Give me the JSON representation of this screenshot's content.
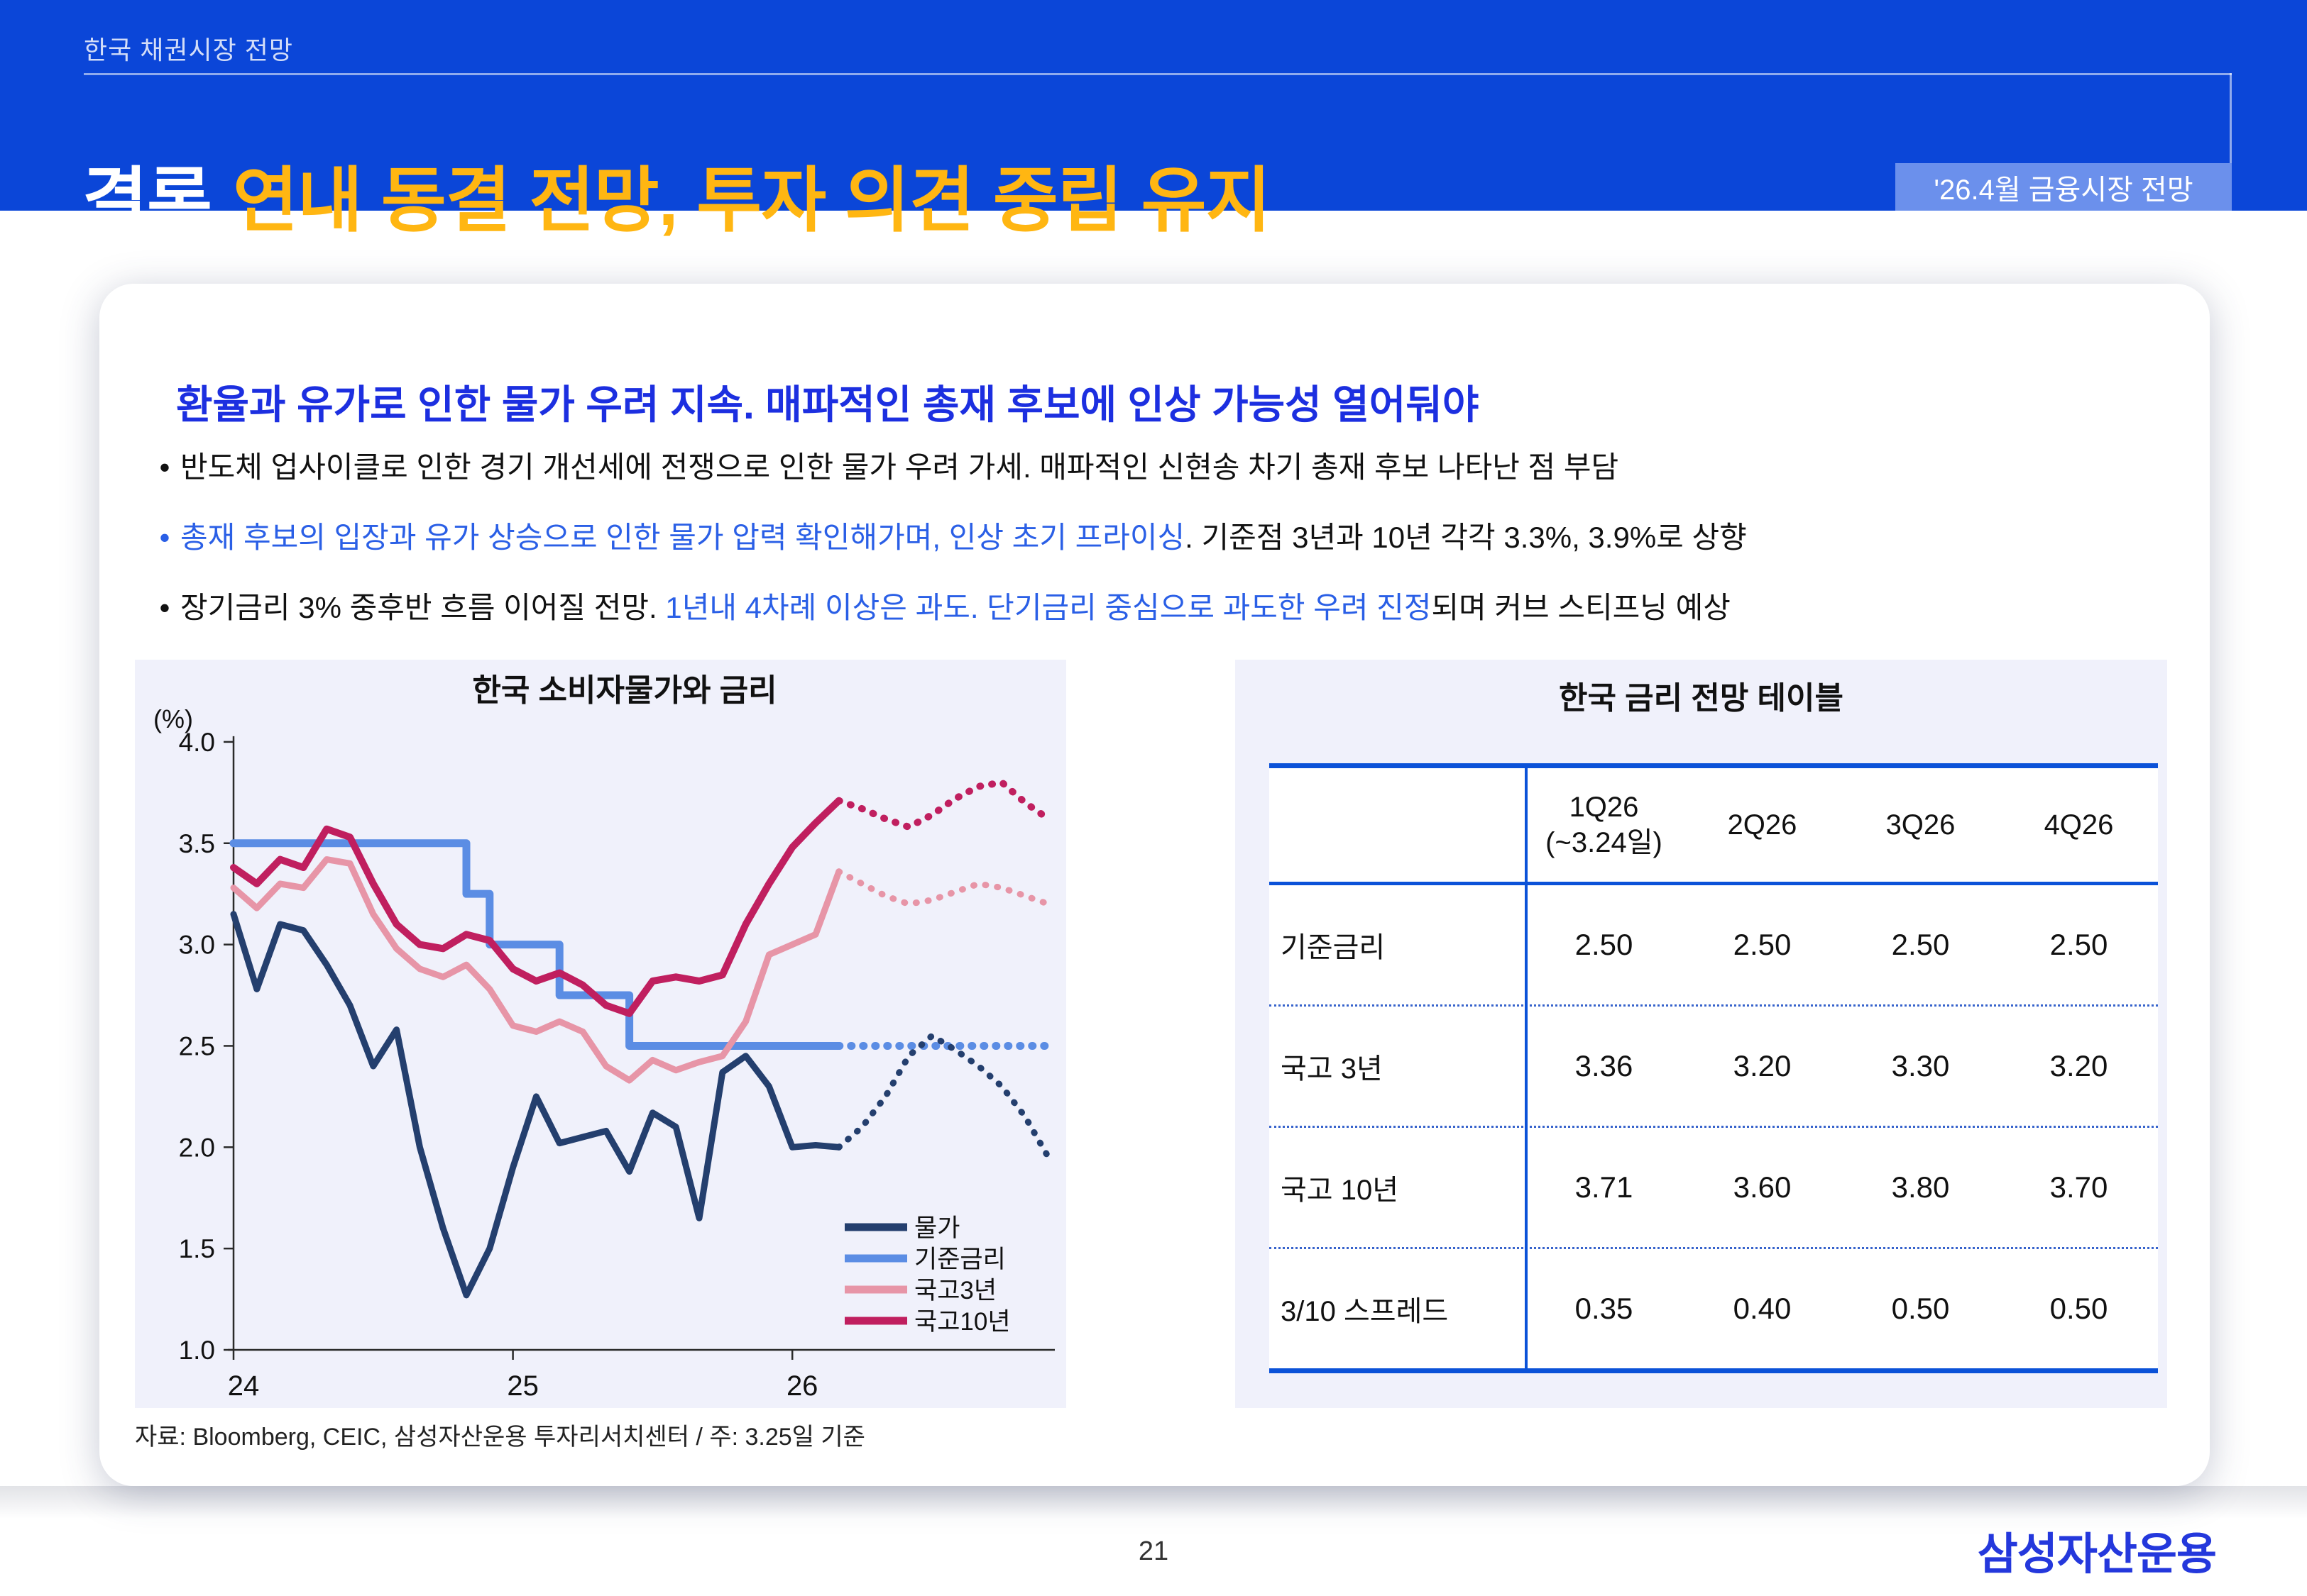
{
  "slide": {
    "kicker": "한국 채권시장 전망",
    "title_emph": "결론",
    "title_rest": "연내 동결 전망, 투자 의견 중립 유지",
    "badge": "'26.4월 금융시장 전망",
    "page_number": "21",
    "logo": "삼성자산운용"
  },
  "colors": {
    "header_blue": "#0b46d8",
    "badge_blue": "#6b90ec",
    "title_yellow": "#ffb612",
    "heading_blue": "#1c2fe0",
    "bullet_blue": "#2a5fe6",
    "table_border_blue": "#0b52d8",
    "panel_lavender": "#f0f1fb"
  },
  "content": {
    "heading": "환율과 유가로 인한 물가 우려 지속. 매파적인 총재 후보에 인상 가능성 열어둬야",
    "bullets": [
      {
        "bullet_color": "#111111",
        "segments": [
          {
            "text": "반도체 업사이클로 인한 경기 개선세에 전쟁으로 인한 물가 우려 가세. 매파적인 신현송 차기 총재 후보 나타난 점 부담",
            "color": "#111111"
          }
        ]
      },
      {
        "bullet_color": "#2a5fe6",
        "segments": [
          {
            "text": "총재 후보의 입장과 유가 상승으로 인한 물가 압력 확인해가며, 인상 초기 프라이싱",
            "color": "#2a5fe6"
          },
          {
            "text": ". 기준점 3년과 10년 각각 3.3%, 3.9%로 상향",
            "color": "#111111"
          }
        ]
      },
      {
        "bullet_color": "#111111",
        "segments": [
          {
            "text": "장기금리 3% 중후반 흐름 이어질 전망. ",
            "color": "#111111"
          },
          {
            "text": "1년내 4차례 이상은 과도. 단기금리 중심으로 과도한 우려 진정",
            "color": "#2a5fe6"
          },
          {
            "text": "되며 커브 스티프닝 예상",
            "color": "#111111"
          }
        ]
      }
    ],
    "source": "자료: Bloomberg, CEIC, 삼성자산운용 투자리서치센터 / 주: 3.25일 기준"
  },
  "chart_data": {
    "type": "line",
    "title": "한국 소비자물가와 금리",
    "unit_label": "(%)",
    "ylim": [
      1.0,
      4.0
    ],
    "yticks": [
      4.0,
      3.5,
      3.0,
      2.5,
      2.0,
      1.5,
      1.0
    ],
    "xticks": [
      {
        "label": "24",
        "month": 0
      },
      {
        "label": "25",
        "month": 12
      },
      {
        "label": "26",
        "month": 24
      }
    ],
    "x_unit": "month (Jan 2024 - Dec 2026)",
    "solid_until_index": 26,
    "forecast_style": "dotted",
    "grid": false,
    "legend_position": "inside-bottom-right",
    "series": [
      {
        "name": "물가",
        "color": "#243f6e",
        "style": "line",
        "width": 9,
        "values": [
          3.15,
          2.78,
          3.1,
          3.07,
          2.9,
          2.7,
          2.4,
          2.58,
          2.0,
          1.6,
          1.27,
          1.5,
          1.9,
          2.25,
          2.02,
          2.05,
          2.08,
          1.88,
          2.17,
          2.1,
          1.65,
          2.37,
          2.45,
          2.3,
          2.0,
          2.01,
          2.0,
          2.1,
          2.25,
          2.45,
          2.55,
          2.48,
          2.4,
          2.3,
          2.15,
          1.95
        ]
      },
      {
        "name": "기준금리",
        "color": "#5b8de4",
        "style": "step",
        "width": 11,
        "values": [
          3.5,
          3.5,
          3.5,
          3.5,
          3.5,
          3.5,
          3.5,
          3.5,
          3.5,
          3.5,
          3.25,
          3.0,
          3.0,
          3.0,
          2.75,
          2.75,
          2.75,
          2.5,
          2.5,
          2.5,
          2.5,
          2.5,
          2.5,
          2.5,
          2.5,
          2.5,
          2.5,
          2.5,
          2.5,
          2.5,
          2.5,
          2.5,
          2.5,
          2.5,
          2.5,
          2.5
        ]
      },
      {
        "name": "국고3년",
        "color": "#e795a7",
        "style": "line",
        "width": 9,
        "values": [
          3.28,
          3.18,
          3.3,
          3.28,
          3.42,
          3.4,
          3.15,
          2.98,
          2.88,
          2.84,
          2.9,
          2.78,
          2.6,
          2.57,
          2.62,
          2.57,
          2.4,
          2.33,
          2.43,
          2.38,
          2.42,
          2.45,
          2.62,
          2.95,
          3.0,
          3.05,
          3.36,
          3.3,
          3.24,
          3.2,
          3.22,
          3.26,
          3.3,
          3.28,
          3.24,
          3.2
        ]
      },
      {
        "name": "국고10년",
        "color": "#c01f5f",
        "style": "line",
        "width": 10,
        "values": [
          3.38,
          3.3,
          3.42,
          3.38,
          3.57,
          3.53,
          3.3,
          3.1,
          3.0,
          2.98,
          3.05,
          3.02,
          2.88,
          2.82,
          2.86,
          2.8,
          2.7,
          2.66,
          2.82,
          2.84,
          2.82,
          2.85,
          3.1,
          3.3,
          3.48,
          3.6,
          3.71,
          3.67,
          3.62,
          3.58,
          3.64,
          3.72,
          3.78,
          3.8,
          3.7,
          3.62
        ]
      }
    ],
    "z_order": [
      1,
      0,
      2,
      3
    ]
  },
  "forecast_table": {
    "title": "한국 금리 전망 테이블",
    "columns": [
      "1Q26\n(~3.24일)",
      "2Q26",
      "3Q26",
      "4Q26"
    ],
    "rows": [
      {
        "label": "기준금리",
        "values": [
          "2.50",
          "2.50",
          "2.50",
          "2.50"
        ]
      },
      {
        "label": "국고 3년",
        "values": [
          "3.36",
          "3.20",
          "3.30",
          "3.20"
        ]
      },
      {
        "label": "국고 10년",
        "values": [
          "3.71",
          "3.60",
          "3.80",
          "3.70"
        ]
      },
      {
        "label": "3/10 스프레드",
        "values": [
          "0.35",
          "0.40",
          "0.50",
          "0.50"
        ]
      }
    ]
  }
}
